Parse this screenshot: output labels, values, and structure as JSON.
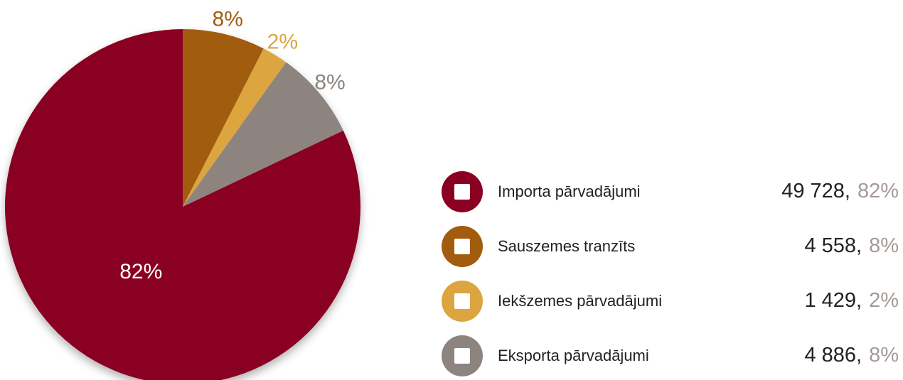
{
  "chart_data": {
    "type": "pie",
    "categories": [
      "Importa pārvadājumi",
      "Sauszemes tranzīts",
      "Iekšzemes pārvadājumi",
      "Eksporta pārvadājumi"
    ],
    "values": [
      49728,
      4558,
      1429,
      4886
    ],
    "value_labels": [
      "49 728,",
      "4 558,",
      "1 429,",
      "4 886,"
    ],
    "percentages": [
      82,
      8,
      2,
      8
    ],
    "percentage_labels": [
      "82%",
      "8%",
      "2%",
      "8%"
    ],
    "colors": [
      "#8a0022",
      "#a25c0e",
      "#dca53f",
      "#8d8480"
    ],
    "legend": "right"
  }
}
